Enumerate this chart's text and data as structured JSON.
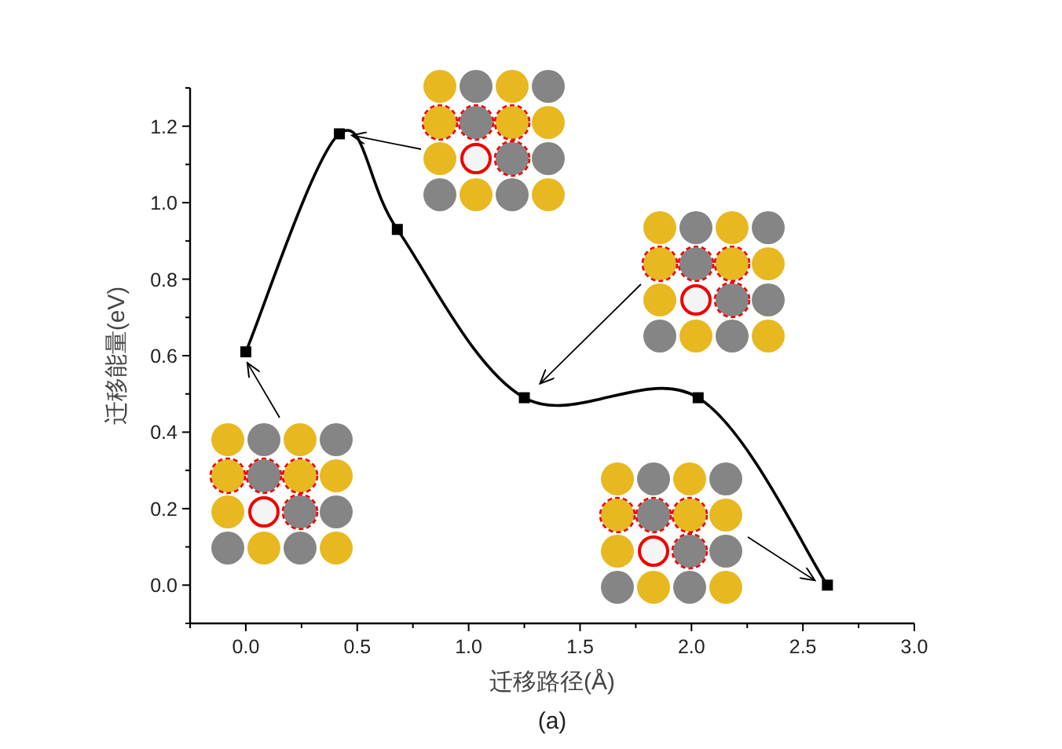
{
  "chart_data": {
    "type": "line",
    "xlabel": "迁移路径(Å)",
    "ylabel": "迁移能量(eV)",
    "annotations": [
      "(a)"
    ],
    "x": [
      0,
      0.42,
      0.68,
      1.25,
      2.03,
      2.61
    ],
    "series": [
      {
        "color": "#000000",
        "values": [
          0.61,
          1.18,
          0.93,
          0.49,
          0.49,
          0.0
        ]
      }
    ],
    "marker": "square",
    "line_style": "solid",
    "grid": false,
    "xlim": [
      -0.25,
      3.0
    ],
    "ylim": [
      -0.1,
      1.3
    ],
    "xticks": [
      {
        "value": 0,
        "label": "0.0"
      },
      0.5,
      {
        "value": 1,
        "label": "1.0"
      },
      1.5,
      {
        "value": 2,
        "label": "2.0"
      },
      2.5,
      {
        "value": 3,
        "label": "3.0"
      }
    ],
    "yticks": [
      {
        "value": 0,
        "label": "0.0"
      },
      0.2,
      0.4,
      0.6,
      0.8,
      {
        "value": 1,
        "label": "1.0"
      },
      1.2
    ]
  }
}
